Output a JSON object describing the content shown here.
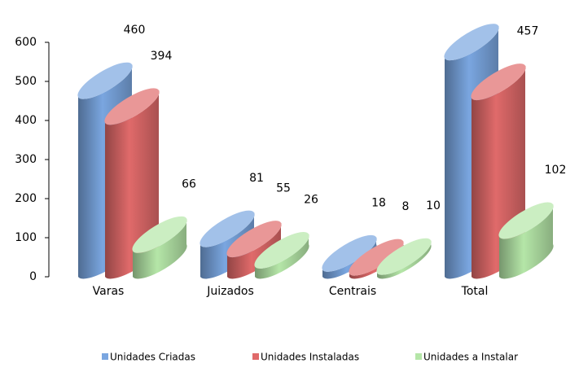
{
  "chart_data": {
    "type": "bar",
    "categories": [
      "Varas",
      "Juizados",
      "Centrais",
      "Total"
    ],
    "series": [
      {
        "name": "Unidades Criadas",
        "color": "#7aa6e0",
        "values": [
          460,
          81,
          18,
          559
        ]
      },
      {
        "name": "Unidades Instaladas",
        "color": "#e06a6a",
        "values": [
          394,
          55,
          8,
          457
        ]
      },
      {
        "name": "Unidades a Instalar",
        "color": "#b5e6a8",
        "values": [
          66,
          26,
          10,
          102
        ]
      }
    ],
    "ylim": [
      0,
      600
    ],
    "yticks": [
      0,
      100,
      200,
      300,
      400,
      500,
      600
    ]
  }
}
